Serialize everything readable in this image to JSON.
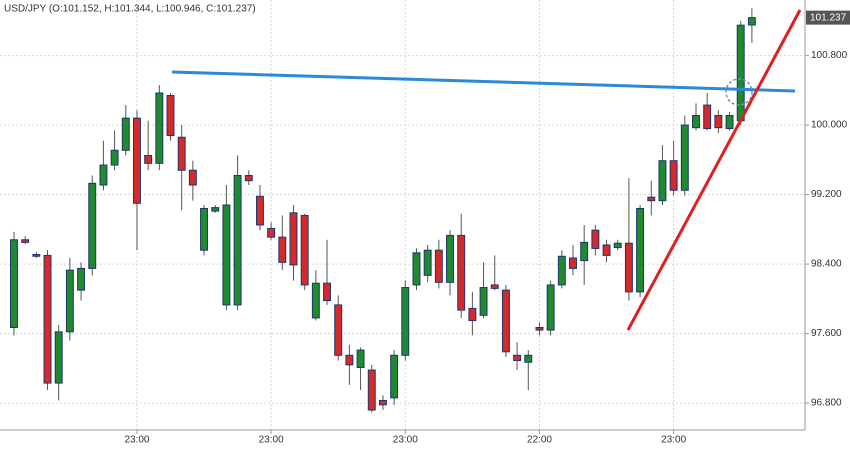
{
  "chart_data": {
    "type": "candlestick",
    "title": "USD/JPY (O:101.152, H:101.344, L:100.946, C:101.237)",
    "price_tag": 101.237,
    "x": [
      0,
      1,
      2,
      3,
      4,
      5,
      6,
      7,
      8,
      9,
      10,
      11,
      12,
      13,
      14,
      15,
      16,
      17,
      18,
      19,
      20,
      21,
      22,
      23,
      24,
      25,
      26,
      27,
      28,
      29,
      30,
      31,
      32,
      33,
      34,
      35,
      36,
      37,
      38,
      39,
      40,
      41,
      42,
      43,
      44,
      45,
      46,
      47,
      48,
      49,
      50,
      51,
      52,
      53,
      54,
      55,
      56,
      57,
      58,
      59,
      60,
      61,
      62,
      63,
      64,
      65,
      66
    ],
    "open": [
      97.67,
      98.68,
      98.51,
      98.5,
      97.03,
      97.62,
      98.1,
      98.35,
      99.31,
      99.54,
      99.71,
      100.08,
      99.65,
      99.56,
      100.34,
      99.86,
      99.48,
      98.56,
      99.01,
      97.93,
      97.93,
      99.42,
      99.18,
      98.81,
      98.71,
      98.99,
      98.96,
      97.78,
      98.18,
      97.93,
      97.35,
      97.21,
      97.18,
      96.83,
      96.86,
      97.35,
      98.16,
      98.27,
      98.56,
      98.19,
      98.73,
      97.89,
      97.81,
      98.16,
      98.1,
      97.35,
      97.27,
      97.67,
      97.64,
      98.16,
      98.47,
      98.44,
      98.79,
      98.62,
      98.59,
      98.64,
      98.08,
      99.17,
      99.13,
      99.59,
      99.25,
      99.97,
      100.23,
      100.11,
      99.96,
      100.05,
      101.152
    ],
    "high": [
      98.77,
      98.72,
      98.54,
      98.56,
      97.7,
      98.47,
      98.42,
      99.42,
      99.82,
      99.94,
      100.23,
      100.17,
      100.05,
      100.46,
      100.37,
      100.0,
      99.59,
      99.08,
      99.08,
      99.31,
      99.65,
      99.48,
      99.31,
      98.88,
      98.96,
      99.08,
      98.98,
      98.33,
      98.68,
      98.04,
      97.47,
      97.44,
      97.24,
      96.89,
      97.41,
      98.21,
      98.58,
      98.62,
      98.68,
      98.79,
      98.98,
      98.08,
      98.42,
      98.5,
      98.16,
      97.5,
      97.41,
      97.73,
      98.21,
      98.56,
      98.62,
      98.85,
      98.85,
      98.68,
      98.68,
      99.39,
      99.08,
      99.36,
      99.77,
      99.82,
      100.11,
      100.25,
      100.37,
      100.17,
      100.15,
      101.2,
      101.344
    ],
    "low": [
      97.58,
      98.63,
      98.47,
      96.95,
      96.83,
      97.52,
      97.98,
      98.27,
      99.25,
      99.48,
      99.65,
      98.56,
      99.48,
      99.48,
      99.82,
      99.02,
      99.13,
      98.5,
      98.99,
      97.87,
      97.87,
      99.31,
      98.79,
      98.68,
      98.33,
      98.21,
      98.1,
      97.75,
      97.93,
      97.29,
      97.01,
      96.95,
      96.69,
      96.72,
      96.78,
      97.29,
      98.1,
      98.19,
      98.12,
      98.04,
      97.78,
      97.58,
      97.78,
      98.1,
      97.33,
      97.18,
      96.95,
      97.58,
      97.58,
      98.12,
      98.27,
      98.16,
      98.5,
      98.42,
      98.56,
      97.98,
      98.02,
      98.96,
      99.08,
      99.19,
      99.19,
      99.94,
      99.94,
      99.91,
      99.94,
      100.0,
      100.946
    ],
    "close": [
      98.68,
      98.65,
      98.49,
      97.03,
      97.62,
      98.33,
      98.35,
      99.33,
      99.54,
      99.71,
      100.08,
      99.1,
      99.56,
      100.37,
      99.88,
      99.48,
      99.31,
      99.04,
      99.05,
      99.08,
      99.42,
      99.36,
      98.85,
      98.71,
      98.42,
      98.39,
      98.16,
      98.18,
      97.98,
      97.35,
      97.24,
      97.41,
      96.72,
      96.78,
      97.35,
      98.13,
      98.53,
      98.56,
      98.19,
      98.73,
      97.87,
      97.75,
      98.13,
      98.12,
      97.39,
      97.29,
      97.35,
      97.64,
      98.16,
      98.49,
      98.35,
      98.65,
      98.58,
      98.5,
      98.64,
      98.08,
      99.04,
      99.13,
      99.59,
      99.25,
      100.0,
      100.11,
      99.96,
      99.97,
      100.11,
      101.15,
      101.237
    ],
    "up_color": "#1f8a2e",
    "down_color": "#d42a2a",
    "outline_color": "#1c3670",
    "xlim": [
      -1.25,
      70.75
    ],
    "xticks": [
      {
        "value": 11,
        "label": "23:00"
      },
      {
        "value": 23,
        "label": "23:00"
      },
      {
        "value": 35,
        "label": "23:00"
      },
      {
        "value": 47,
        "label": "22:00"
      },
      {
        "value": 59,
        "label": "23:00"
      }
    ],
    "ylim": [
      96.49,
      101.44
    ],
    "yticks": [
      {
        "value": 96.8,
        "label": "96.800"
      },
      {
        "value": 97.6,
        "label": "97.600"
      },
      {
        "value": 98.4,
        "label": "98.400"
      },
      {
        "value": 99.2,
        "label": "99.200"
      },
      {
        "value": 100,
        "label": "100.000"
      },
      {
        "value": 100.8,
        "label": "100.800"
      }
    ],
    "grid": true
  }
}
